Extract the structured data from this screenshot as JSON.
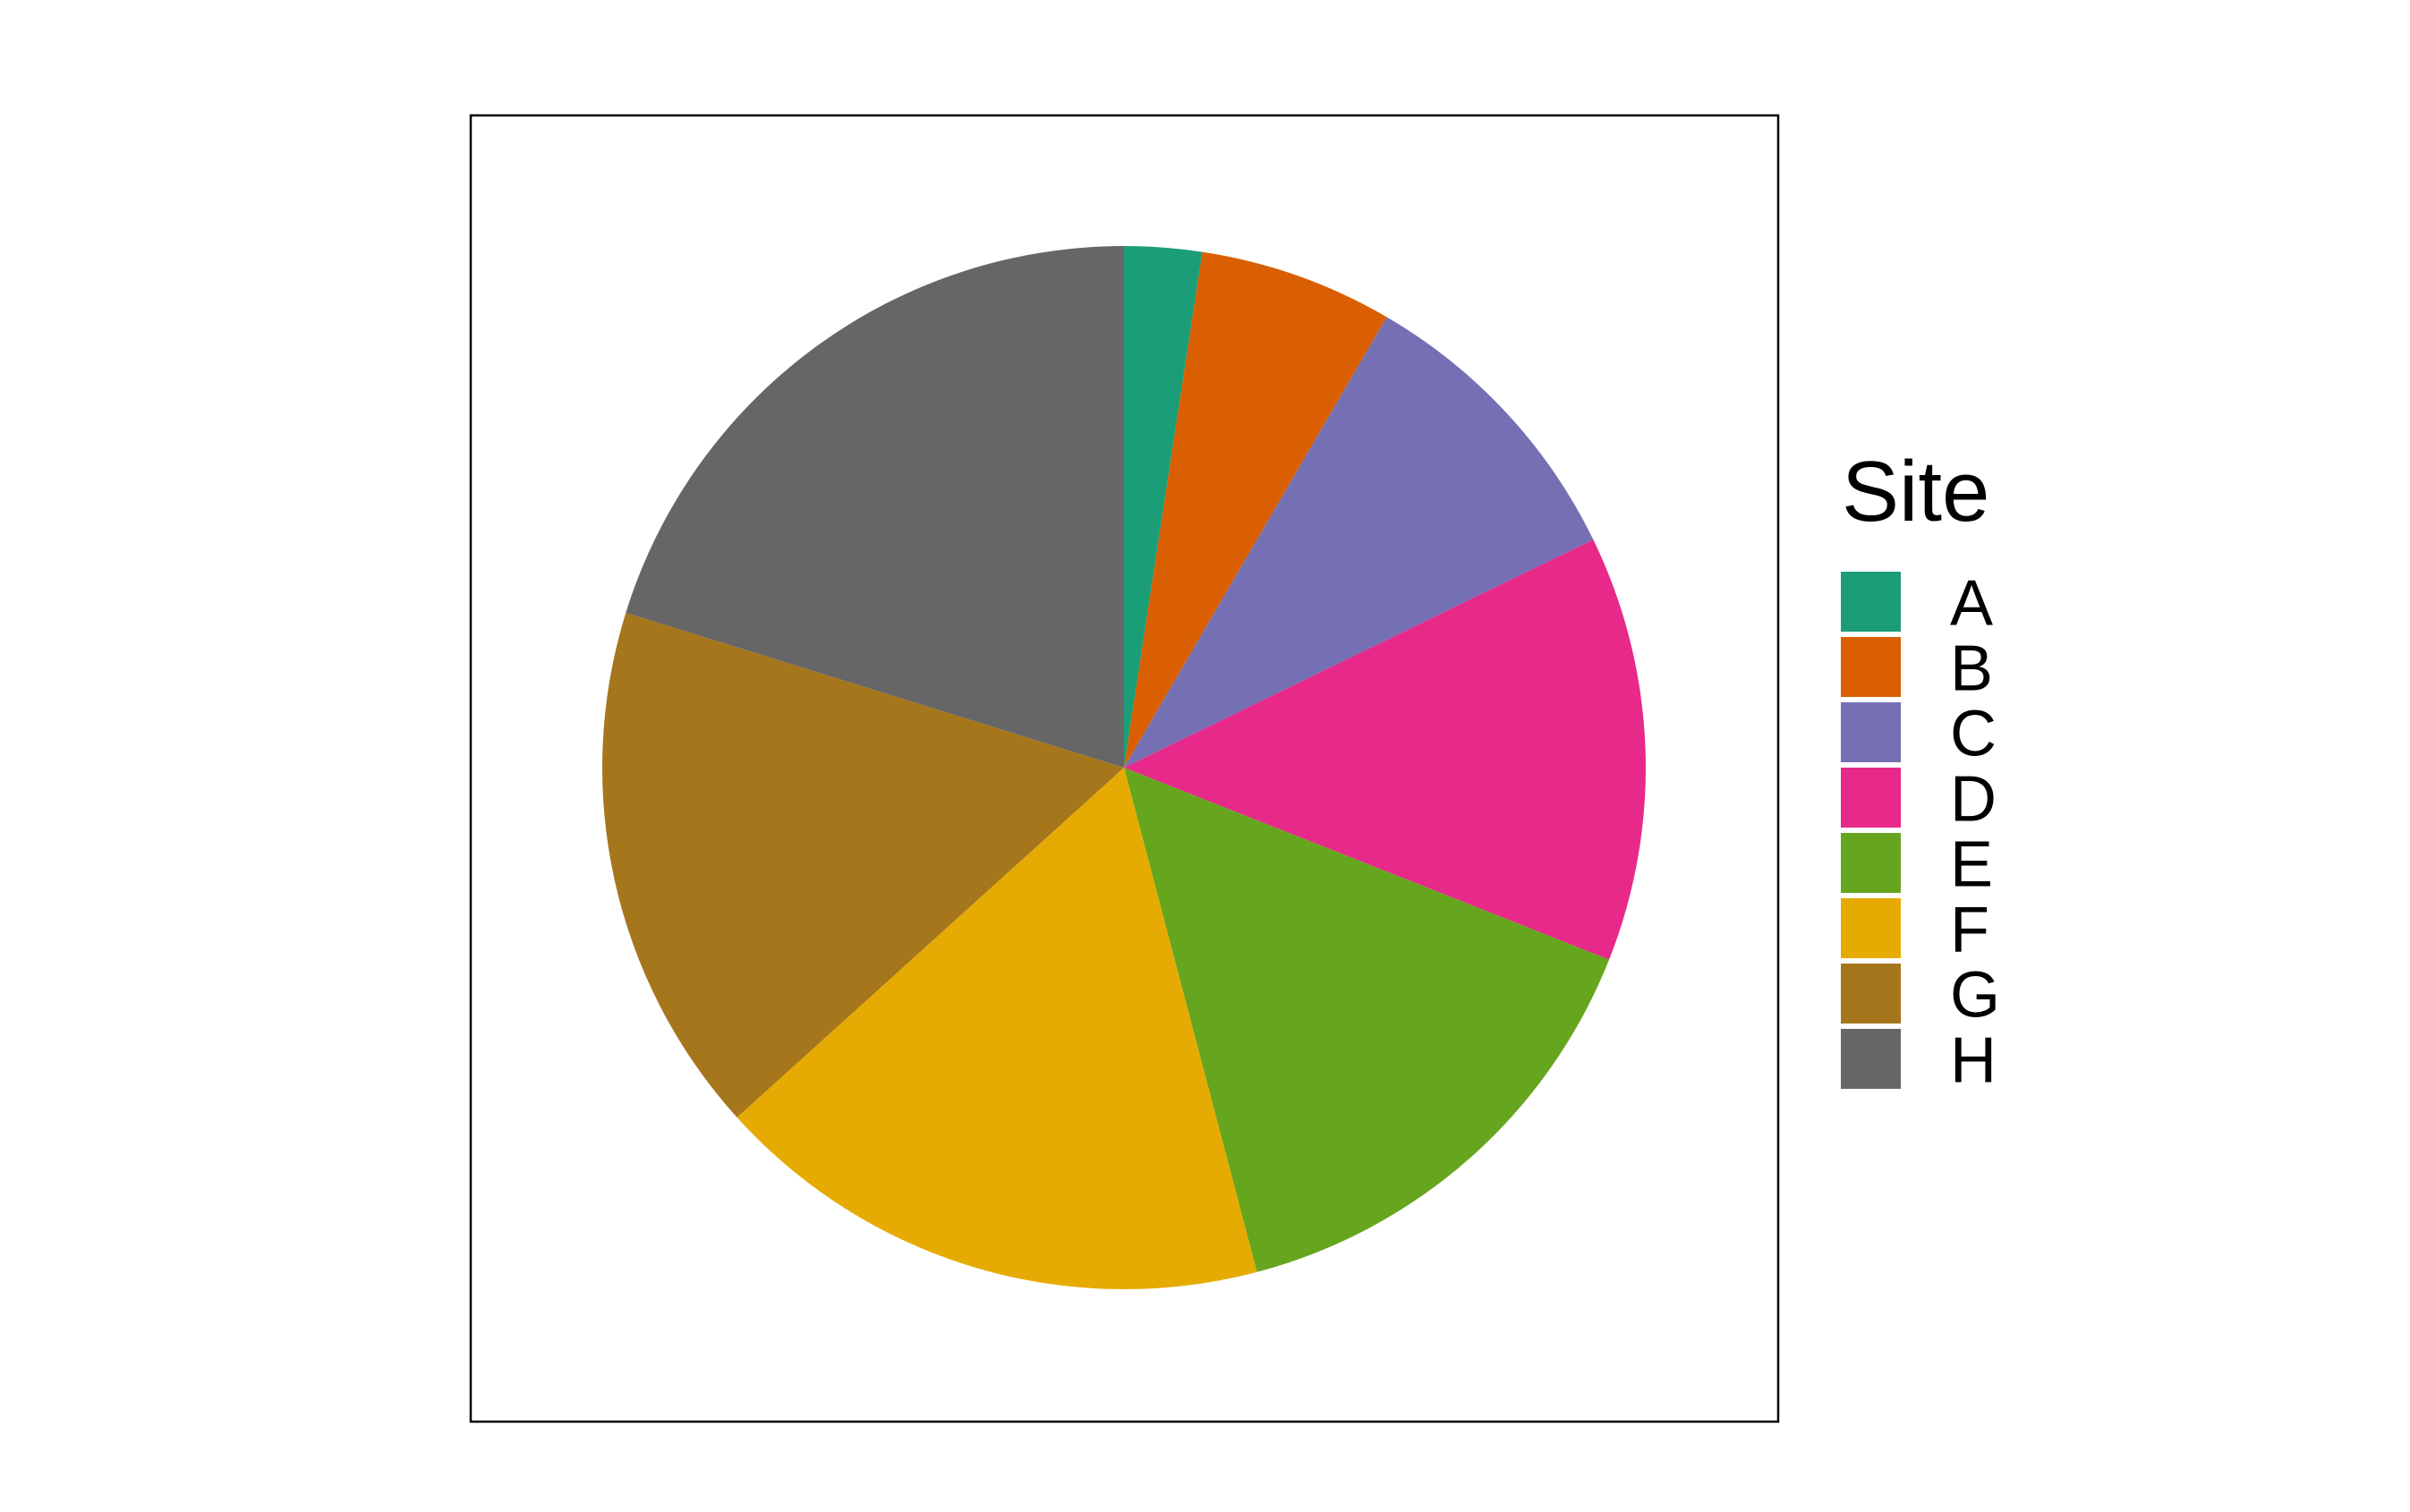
{
  "chart_data": {
    "type": "pie",
    "legend": {
      "title": "Site",
      "placement": "right"
    },
    "grid": false,
    "start": "top",
    "direction": "clockwise",
    "series": [
      {
        "name": "Site",
        "categories": [
          "A",
          "B",
          "C",
          "D",
          "E",
          "F",
          "G",
          "H"
        ]
      }
    ],
    "slices": [
      {
        "label": "A",
        "value": 2.4,
        "color": "#1B9E77"
      },
      {
        "label": "B",
        "value": 6.0,
        "color": "#D95F02"
      },
      {
        "label": "C",
        "value": 9.4,
        "color": "#7570B3"
      },
      {
        "label": "D",
        "value": 13.2,
        "color": "#E7298A"
      },
      {
        "label": "E",
        "value": 14.9,
        "color": "#66A61E"
      },
      {
        "label": "F",
        "value": 17.4,
        "color": "#E6AB02"
      },
      {
        "label": "G",
        "value": 16.5,
        "color": "#A6761D"
      },
      {
        "label": "H",
        "value": 20.2,
        "color": "#666666"
      }
    ]
  }
}
